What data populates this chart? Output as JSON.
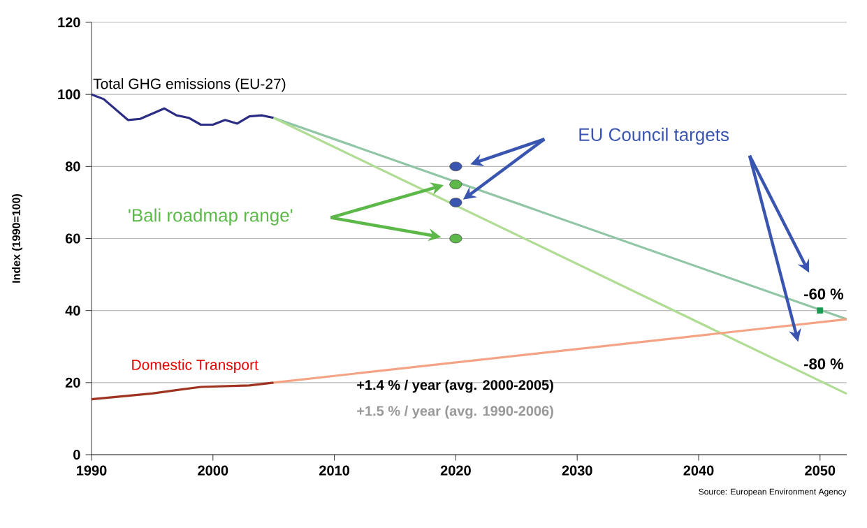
{
  "chart_data": {
    "type": "line",
    "ylabel": "Index (1990=100)",
    "xlim": [
      1990,
      2052.2
    ],
    "ylim": [
      0,
      120
    ],
    "xticks": [
      1990,
      2000,
      2010,
      2020,
      2030,
      2040,
      2050
    ],
    "yticks": [
      0,
      20,
      40,
      60,
      80,
      100,
      120
    ],
    "grid": "y",
    "marker": "none",
    "line_style": "solid",
    "series": [
      {
        "name": "Total GHG emissions (EU-27)",
        "color": "#2b2d85",
        "x": [
          1990,
          1991,
          1993,
          1994,
          1996,
          1997,
          1998,
          1999,
          2000,
          2001,
          2002,
          2003,
          2004,
          2005
        ],
        "values": [
          100,
          98.7,
          92.9,
          93.2,
          96.1,
          94.2,
          93.5,
          91.6,
          91.6,
          92.9,
          91.9,
          93.9,
          94.2,
          93.5
        ]
      },
      {
        "color": "#90c6a6",
        "x": [
          2005,
          2052.2
        ],
        "values": [
          93.5,
          37.6
        ]
      },
      {
        "color": "#b0dc94",
        "x": [
          2005,
          2052.2
        ],
        "values": [
          93.5,
          16.9
        ]
      },
      {
        "name": "Domestic Transport",
        "color": "#9e3320",
        "x": [
          1990,
          1995,
          1999,
          2003,
          2005
        ],
        "values": [
          15.4,
          17,
          18.8,
          19.2,
          20
        ]
      },
      {
        "color": "#f5a385",
        "x": [
          2005,
          2052.2
        ],
        "values": [
          20,
          37.6
        ]
      },
      {
        "name": "EU Council targets",
        "type": "scatter",
        "marker": "circle",
        "color": "#3a55b0",
        "x": [
          2020,
          2020
        ],
        "values": [
          80,
          70
        ]
      },
      {
        "name": "'Bali roadmap range'",
        "type": "scatter",
        "marker": "circle",
        "color": "#5cb848",
        "x": [
          2020,
          2020
        ],
        "values": [
          75,
          60
        ]
      },
      {
        "type": "scatter",
        "marker": "square",
        "color": "#1a9950",
        "x": [
          2050
        ],
        "values": [
          40
        ]
      }
    ],
    "annotations": [
      "-60 %",
      "-80 %",
      "+1.4 % / year (avg. 2000-2005)",
      "+1.5 % / year (avg. 1990-2006)",
      "Source: European Environment Agency"
    ]
  }
}
